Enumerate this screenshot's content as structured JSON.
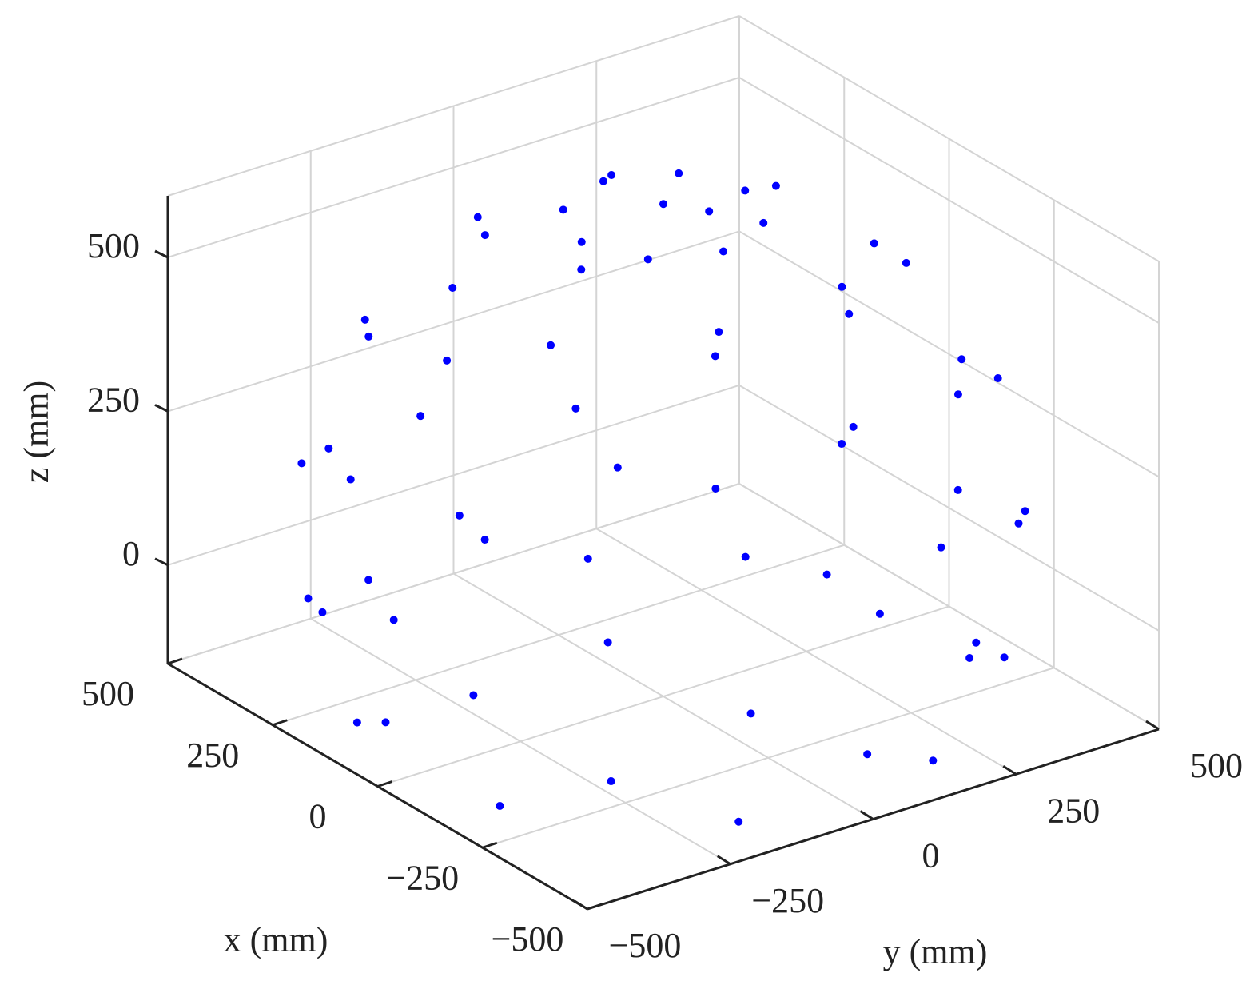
{
  "chart_data": {
    "type": "scatter3d",
    "x_label": "x (mm)",
    "y_label": "y (mm)",
    "z_label": "z (mm)",
    "xlim": [
      -500,
      500
    ],
    "ylim": [
      -500,
      500
    ],
    "zlim": [
      -160,
      600
    ],
    "xticks": [
      {
        "value": -500,
        "label": "−500"
      },
      {
        "value": -250,
        "label": "−250"
      },
      0,
      250,
      500
    ],
    "yticks": [
      {
        "value": -500,
        "label": "−500"
      },
      {
        "value": -250,
        "label": "−250"
      },
      0,
      250,
      500
    ],
    "zticks": [
      0,
      250,
      500
    ],
    "grid": true,
    "series": [
      {
        "color": "#0000ff",
        "x": [
          0,
          143,
          101,
          0,
          -101,
          -143,
          -101,
          0,
          101,
          283,
          117,
          -117,
          -283,
          -283,
          -117,
          117,
          283,
          425,
          301,
          0,
          -301,
          -425,
          -301,
          0,
          301,
          449,
          186,
          -186,
          -449,
          -449,
          -186,
          186,
          449,
          516,
          365,
          0,
          -365,
          -516,
          -365,
          0,
          365,
          477,
          197,
          -197,
          -477,
          -477,
          -197,
          197,
          477,
          486,
          344,
          0,
          -344,
          -486,
          -344,
          0,
          344,
          411,
          170,
          -170,
          -411,
          -411,
          -170,
          170,
          411
        ],
        "y": [
          0,
          0,
          101,
          143,
          101,
          0,
          -101,
          -143,
          -101,
          117,
          283,
          283,
          117,
          -117,
          -283,
          -283,
          -117,
          0,
          301,
          425,
          301,
          0,
          -301,
          -425,
          -301,
          186,
          449,
          449,
          186,
          -186,
          -449,
          -449,
          -186,
          0,
          365,
          516,
          365,
          0,
          -365,
          -516,
          -365,
          197,
          477,
          477,
          197,
          -197,
          -477,
          -477,
          -197,
          0,
          344,
          486,
          344,
          0,
          -344,
          -486,
          -344,
          170,
          411,
          411,
          170,
          -170,
          -411,
          -411,
          -170
        ],
        "z": [
          640,
          620,
          620,
          620,
          620,
          620,
          620,
          620,
          620,
          540,
          540,
          540,
          540,
          540,
          540,
          540,
          540,
          420,
          420,
          420,
          420,
          420,
          420,
          420,
          420,
          300,
          300,
          300,
          300,
          300,
          300,
          300,
          300,
          180,
          180,
          180,
          180,
          180,
          180,
          180,
          180,
          60,
          60,
          60,
          60,
          60,
          60,
          60,
          60,
          -60,
          -60,
          -60,
          -60,
          -60,
          -60,
          -60,
          -60,
          -150,
          -150,
          -150,
          -150,
          -150,
          -150,
          -150,
          -150
        ]
      }
    ]
  }
}
